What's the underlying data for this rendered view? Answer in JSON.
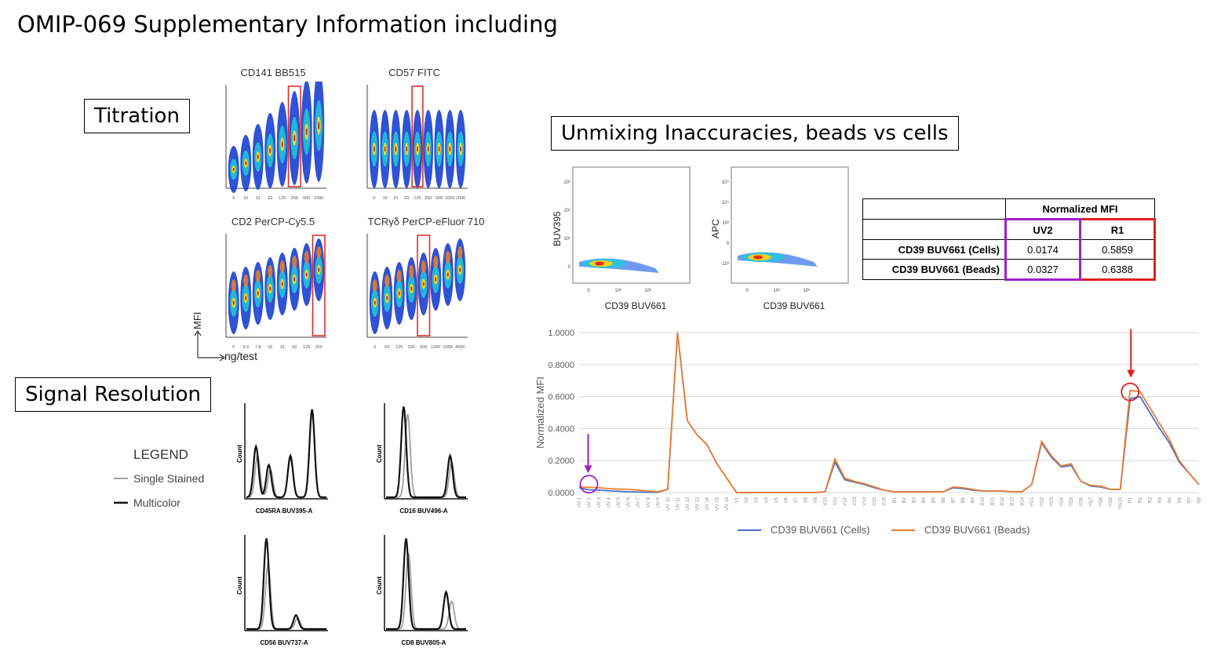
{
  "page_title": "OMIP-069 Supplementary Information including",
  "sections": {
    "titration": "Titration",
    "unmixing": "Unmixing Inaccuracies, beads vs cells",
    "signal": "Signal Resolution"
  },
  "titration": {
    "panels": [
      {
        "title": "CD141 BB515",
        "ticks": [
          "0",
          "16",
          "31",
          "63",
          "125",
          "250",
          "500",
          "1000"
        ]
      },
      {
        "title": "CD57 FITC",
        "ticks": [
          "0",
          "16",
          "31",
          "63",
          "125",
          "250",
          "500",
          "1000",
          "2000"
        ]
      },
      {
        "title": "CD2 PerCP-Cy5.5",
        "ticks": [
          "0",
          "3.9",
          "7.8",
          "16",
          "31",
          "63",
          "125",
          "250"
        ]
      },
      {
        "title": "TCRγδ PerCP-eFluor 710",
        "ticks": [
          "0",
          "63",
          "125",
          "250",
          "500",
          "1000",
          "2000",
          "4000"
        ]
      }
    ],
    "y_axis": "MFI",
    "x_axis": "ng/test"
  },
  "scatter": [
    {
      "ylabel": "BUV395",
      "xlabel": "CD39 BUV661",
      "yticks": [
        "10³",
        "10²",
        "10¹",
        "0"
      ],
      "xticks": [
        "0",
        "10⁴",
        "10⁵"
      ]
    },
    {
      "ylabel": "APC",
      "xlabel": "CD39 BUV661",
      "yticks": [
        "10⁵",
        "10⁴",
        "10³",
        "0",
        "-10³"
      ],
      "xticks": [
        "0",
        "10⁴",
        "10⁵"
      ]
    }
  ],
  "mfi_table": {
    "header": "Normalized MFI",
    "col1": "UV2",
    "col2": "R1",
    "rows": [
      {
        "label": "CD39 BUV661 (Cells)",
        "uv2": "0.0174",
        "r1": "0.5859"
      },
      {
        "label": "CD39 BUV661 (Beads)",
        "uv2": "0.0327",
        "r1": "0.6388"
      }
    ],
    "colors": {
      "uv2": "#a020c8",
      "r1": "#e02020"
    }
  },
  "signal_resolution": {
    "legend_title": "LEGEND",
    "legend_single": "Single Stained",
    "legend_multi": "Multicolor",
    "ylabel": "Count",
    "panels": [
      "CD45RA BUV395-A",
      "CD16 BUV496-A",
      "CD56 BUV737-A",
      "CD8 BUV805-A"
    ]
  },
  "chart_data": {
    "type": "line",
    "ylabel": "Normalized MFI",
    "ylim": [
      0,
      1
    ],
    "yticks": [
      "0.0000",
      "0.2000",
      "0.4000",
      "0.6000",
      "0.8000",
      "1.0000"
    ],
    "categories": [
      "UV 1",
      "UV 2",
      "UV 3",
      "UV 4",
      "UV 5",
      "UV 6",
      "UV 7",
      "UV 8",
      "UV 9",
      "UV 10",
      "UV 11",
      "UV 12",
      "UV 13",
      "UV 14",
      "UV 15",
      "UV 16",
      "V1",
      "V2",
      "V3",
      "V4",
      "V5",
      "V6",
      "V7",
      "V8",
      "V9",
      "V10",
      "V11",
      "V12",
      "V13",
      "V14",
      "V15",
      "V16",
      "B1",
      "B2",
      "B3",
      "B4",
      "B5",
      "B6",
      "B7",
      "B8",
      "B9",
      "B10",
      "B11",
      "B12",
      "B13",
      "B14",
      "YG1",
      "YG2",
      "YG3",
      "YG4",
      "YG5",
      "YG6",
      "YG7",
      "YG8",
      "YG9",
      "YG10",
      "R1",
      "R2",
      "R3",
      "R4",
      "R5",
      "R6",
      "R7",
      "R8"
    ],
    "series": [
      {
        "name": "CD39 BUV661 (Cells)",
        "color": "#4472c4",
        "values": [
          0.03,
          0.0174,
          0.015,
          0.012,
          0.008,
          0.005,
          0.003,
          0.002,
          0.002,
          0.02,
          1.0,
          0.45,
          0.36,
          0.3,
          0.18,
          0.09,
          0.0,
          0,
          0,
          0,
          0,
          0,
          0,
          0,
          0,
          0.005,
          0.19,
          0.08,
          0.065,
          0.05,
          0.03,
          0.015,
          0.005,
          0.005,
          0.005,
          0.005,
          0.005,
          0.005,
          0.03,
          0.025,
          0.015,
          0.01,
          0.01,
          0.01,
          0.005,
          0.005,
          0.05,
          0.31,
          0.22,
          0.16,
          0.17,
          0.07,
          0.04,
          0.035,
          0.02,
          0.02,
          0.5859,
          0.6,
          0.5,
          0.4,
          0.31,
          0.19,
          0.12,
          0.05
        ]
      },
      {
        "name": "CD39 BUV661 (Beads)",
        "color": "#ed7d31",
        "values": [
          0.035,
          0.0327,
          0.03,
          0.025,
          0.022,
          0.02,
          0.015,
          0.01,
          0.005,
          0.02,
          1.0,
          0.45,
          0.36,
          0.3,
          0.18,
          0.09,
          0.0,
          0,
          0,
          0,
          0,
          0,
          0,
          0,
          0,
          0.005,
          0.21,
          0.09,
          0.07,
          0.055,
          0.035,
          0.015,
          0.005,
          0.005,
          0.005,
          0.005,
          0.005,
          0.005,
          0.035,
          0.03,
          0.02,
          0.01,
          0.01,
          0.01,
          0.005,
          0.005,
          0.05,
          0.32,
          0.23,
          0.165,
          0.18,
          0.07,
          0.045,
          0.04,
          0.02,
          0.02,
          0.6388,
          0.63,
          0.53,
          0.43,
          0.33,
          0.2,
          0.12,
          0.05
        ]
      }
    ]
  }
}
